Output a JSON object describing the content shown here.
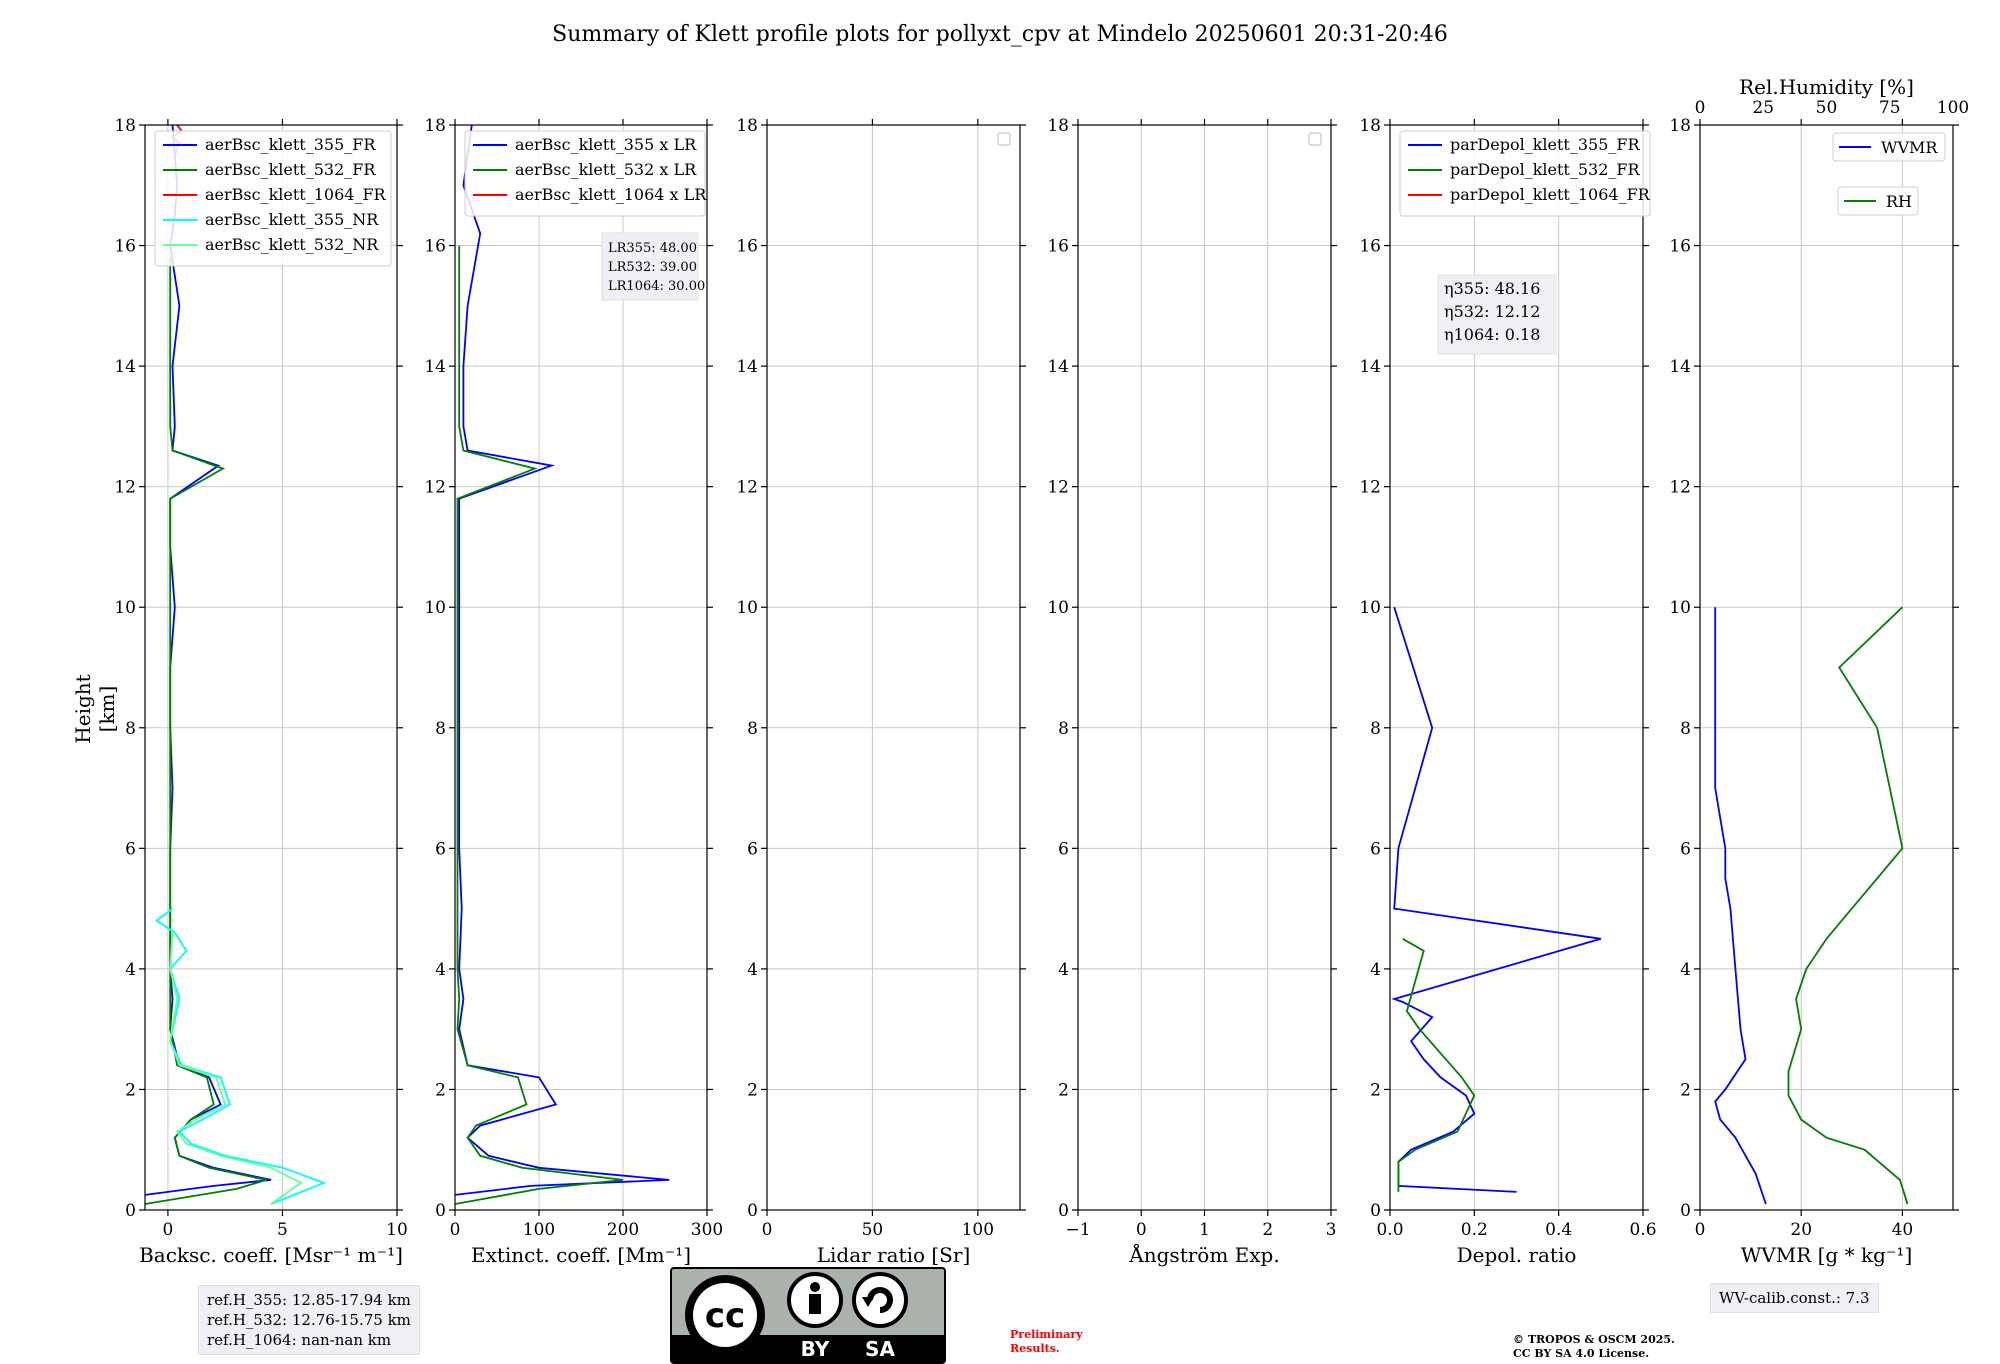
{
  "title": "Summary of Klett profile plots for pollyxt_cpv at Mindelo 20250601 20:31-20:46",
  "ylabel": "Height [km]",
  "chart_data": [
    {
      "type": "line",
      "name": "backscatter",
      "xlabel": "Backsc. coeff. [Msr⁻¹ m⁻¹]",
      "xlim": [
        -1,
        10
      ],
      "ylim": [
        0,
        18
      ],
      "xticks": [
        0,
        5,
        10
      ],
      "yticks": [
        0,
        2,
        4,
        6,
        8,
        10,
        12,
        14,
        16,
        18
      ],
      "legend_position": "top",
      "series": [
        {
          "name": "aerBsc_klett_355_FR",
          "color": "#0000ff",
          "x": [
            -1,
            2,
            4.5,
            2,
            0.5,
            0.3,
            1,
            2.3,
            1.8,
            0.5,
            0.1,
            0.2,
            0.1,
            0.1,
            0.1,
            0.2,
            0.1,
            0.1,
            0.3,
            0.1,
            0.1,
            2.2,
            0.2,
            0.3,
            0.2,
            0.5,
            0.1,
            0.3,
            0.4,
            0.2
          ],
          "y": [
            0.25,
            0.4,
            0.5,
            0.7,
            0.9,
            1.2,
            1.5,
            1.75,
            2.2,
            2.4,
            3.0,
            3.5,
            4.0,
            5.0,
            6.0,
            7.0,
            8.0,
            9.0,
            10.0,
            11.0,
            11.8,
            12.35,
            12.6,
            13.0,
            14.0,
            15.0,
            16.0,
            16.5,
            17.0,
            18.0
          ]
        },
        {
          "name": "aerBsc_klett_532_FR",
          "color": "#008000",
          "x": [
            -1,
            3,
            4.3,
            1.8,
            0.5,
            0.3,
            1,
            2,
            1.7,
            0.4,
            0.1,
            0.1,
            0.1,
            0.1,
            0.1,
            0.1,
            0.1,
            0.1,
            0.1,
            0.1,
            0.1,
            2.4,
            0.2,
            0.1,
            0.1,
            0.1,
            0.1
          ],
          "y": [
            0.1,
            0.35,
            0.5,
            0.7,
            0.9,
            1.2,
            1.5,
            1.75,
            2.2,
            2.4,
            3.0,
            3.5,
            4.0,
            5.0,
            6.0,
            7.0,
            8.0,
            9.0,
            10.0,
            11.0,
            11.8,
            12.3,
            12.6,
            13.0,
            14.0,
            15.0,
            15.8
          ]
        },
        {
          "name": "aerBsc_klett_1064_FR",
          "color": "#ff0000",
          "x": [
            0.3,
            0.5,
            0.2,
            0.6,
            0.4
          ],
          "y": [
            17.5,
            17.7,
            17.8,
            17.9,
            18.0
          ]
        },
        {
          "name": "aerBsc_klett_355_NR",
          "color": "#00ffff",
          "x": [
            4.5,
            6.8,
            5,
            2.5,
            1,
            0.5,
            1.5,
            2.7,
            2.3,
            0.6,
            0.1,
            0.5,
            0.1,
            0.8,
            0.3,
            -0.5,
            0.2
          ],
          "y": [
            0.1,
            0.45,
            0.7,
            0.9,
            1.1,
            1.3,
            1.5,
            1.75,
            2.2,
            2.4,
            2.8,
            3.5,
            4.0,
            4.3,
            4.6,
            4.8,
            5.0
          ]
        },
        {
          "name": "aerBsc_klett_532_NR",
          "color": "#66ff99",
          "x": [
            4.5,
            5.8,
            4.5,
            2.3,
            0.8,
            0.4,
            1.2,
            2.5,
            2.1,
            0.5,
            0.1,
            0.4,
            0.1,
            0.2
          ],
          "y": [
            0.1,
            0.45,
            0.7,
            0.9,
            1.1,
            1.3,
            1.5,
            1.75,
            2.2,
            2.4,
            2.8,
            3.5,
            4.0,
            4.6
          ]
        }
      ]
    },
    {
      "type": "line",
      "name": "extinction",
      "xlabel": "Extinct. coeff. [Mm⁻¹]",
      "xlim": [
        0,
        300
      ],
      "ylim": [
        0,
        18
      ],
      "xticks": [
        0,
        100,
        200,
        300
      ],
      "yticks": [
        0,
        2,
        4,
        6,
        8,
        10,
        12,
        14,
        16,
        18
      ],
      "series": [
        {
          "name": "aerBsc_klett_355 x LR",
          "color": "#0000ff",
          "x": [
            0,
            90,
            255,
            100,
            40,
            15,
            30,
            120,
            100,
            15,
            5,
            10,
            5,
            8,
            5,
            5,
            5,
            5,
            5,
            5,
            5,
            115,
            15,
            10,
            10,
            15,
            30,
            10,
            20
          ],
          "y": [
            0.25,
            0.4,
            0.5,
            0.7,
            0.9,
            1.2,
            1.4,
            1.75,
            2.2,
            2.4,
            3.0,
            3.5,
            4.0,
            5.0,
            6.0,
            7.0,
            8.0,
            9.0,
            10.0,
            11.0,
            11.8,
            12.35,
            12.6,
            13.0,
            14.0,
            15.0,
            16.2,
            17.0,
            18.0
          ]
        },
        {
          "name": "aerBsc_klett_532 x LR",
          "color": "#008000",
          "x": [
            0,
            100,
            200,
            80,
            30,
            15,
            25,
            85,
            75,
            15,
            3,
            5,
            3,
            3,
            3,
            3,
            3,
            3,
            3,
            3,
            3,
            95,
            10,
            5,
            5,
            5,
            5
          ],
          "y": [
            0.1,
            0.35,
            0.5,
            0.7,
            0.9,
            1.2,
            1.4,
            1.75,
            2.2,
            2.4,
            3.0,
            3.5,
            4.0,
            5.0,
            6.0,
            7.0,
            8.0,
            9.0,
            10.0,
            11.0,
            11.8,
            12.3,
            12.6,
            13.0,
            14.0,
            15.0,
            16.0
          ]
        },
        {
          "name": "aerBsc_klett_1064 x LR",
          "color": "#ff0000",
          "x": [],
          "y": []
        }
      ],
      "annotation": [
        "LR355: 48.00",
        "LR532: 39.00",
        "LR1064: 30.00"
      ]
    },
    {
      "type": "line",
      "name": "lidar-ratio",
      "xlabel": "Lidar ratio [Sr]",
      "xlim": [
        0,
        120
      ],
      "ylim": [
        0,
        18
      ],
      "xticks": [
        0,
        50,
        100
      ],
      "yticks": [
        0,
        2,
        4,
        6,
        8,
        10,
        12,
        14,
        16,
        18
      ],
      "series": []
    },
    {
      "type": "line",
      "name": "angstrom",
      "xlabel": "Ångström Exp.",
      "xlim": [
        -1,
        3
      ],
      "ylim": [
        0,
        18
      ],
      "xticks": [
        -1,
        0,
        1,
        2,
        3
      ],
      "yticks": [
        0,
        2,
        4,
        6,
        8,
        10,
        12,
        14,
        16,
        18
      ],
      "series": []
    },
    {
      "type": "line",
      "name": "depol",
      "xlabel": "Depol. ratio",
      "xlim": [
        0,
        0.6
      ],
      "ylim": [
        0,
        18
      ],
      "xticks": [
        0.0,
        0.2,
        0.4,
        0.6
      ],
      "yticks": [
        0,
        2,
        4,
        6,
        8,
        10,
        12,
        14,
        16,
        18
      ],
      "series": [
        {
          "name": "parDepol_klett_355_FR",
          "color": "#0000ff",
          "x": [
            0.3,
            0.02,
            0.02,
            0.05,
            0.15,
            0.2,
            0.18,
            0.12,
            0.08,
            0.05,
            0.1,
            0.03,
            0.01,
            0.5,
            0.01,
            0.02,
            0.1,
            0.01
          ],
          "y": [
            0.3,
            0.4,
            0.8,
            1.0,
            1.3,
            1.6,
            1.9,
            2.2,
            2.5,
            2.8,
            3.2,
            3.45,
            3.5,
            4.5,
            5.0,
            6.0,
            8.0,
            10.0
          ]
        },
        {
          "name": "parDepol_klett_532_FR",
          "color": "#008000",
          "x": [
            0.02,
            0.02,
            0.06,
            0.16,
            0.2,
            0.17,
            0.12,
            0.07,
            0.04,
            0.06,
            0.08,
            0.03
          ],
          "y": [
            0.3,
            0.8,
            1.0,
            1.3,
            1.9,
            2.2,
            2.6,
            3.0,
            3.3,
            3.8,
            4.3,
            4.5
          ]
        },
        {
          "name": "parDepol_klett_1064_FR",
          "color": "#ff0000",
          "x": [],
          "y": []
        }
      ],
      "annotation": [
        "η355: 48.16",
        "η532: 12.12",
        "η1064: 0.18"
      ]
    },
    {
      "type": "line",
      "name": "wvmr",
      "xlabel": "WVMR [g * kg⁻¹]",
      "xlim": [
        0,
        50
      ],
      "ylim": [
        0,
        18
      ],
      "xticks": [
        0,
        20,
        40
      ],
      "x2label": "Rel.Humidity [%]",
      "x2lim": [
        0,
        100
      ],
      "x2ticks": [
        0,
        25,
        50,
        75,
        100
      ],
      "yticks": [
        0,
        2,
        4,
        6,
        8,
        10,
        12,
        14,
        16,
        18
      ],
      "series": [
        {
          "name": "WVMR",
          "color": "#0000ff",
          "x": [
            13,
            11,
            7,
            4,
            3,
            5,
            9,
            8,
            7,
            6,
            5,
            5,
            3,
            3,
            3
          ],
          "y": [
            0.1,
            0.6,
            1.2,
            1.5,
            1.8,
            2.0,
            2.5,
            3.0,
            4.0,
            5.0,
            5.5,
            6.0,
            7.0,
            8.0,
            10.0
          ]
        },
        {
          "name": "RH",
          "color": "#008000",
          "x": [
            82,
            79,
            65,
            50,
            40,
            35,
            35,
            40,
            38,
            42,
            50,
            60,
            70,
            80,
            75,
            70,
            55,
            80
          ],
          "y": [
            0.1,
            0.5,
            1.0,
            1.2,
            1.5,
            1.9,
            2.3,
            3.0,
            3.5,
            4.0,
            4.5,
            5.0,
            5.5,
            6.0,
            7.0,
            8.0,
            9.0,
            10.0
          ]
        }
      ]
    }
  ],
  "notes": {
    "ref_h_lines": [
      "ref.H_355: 12.85-17.94 km",
      "ref.H_532: 12.76-15.75 km",
      "ref.H_1064: nan-nan km"
    ],
    "license_by": "BY",
    "license_sa": "SA",
    "preliminary_1": "Preliminary",
    "preliminary_2": "Results.",
    "wv_calib": "WV-calib.const.: 7.3",
    "copyright_1": "© TROPOS & OSCM 2025.",
    "copyright_2": "CC BY SA 4.0 License."
  },
  "colors": {
    "blue": "#0000ff",
    "green": "#008000",
    "red": "#ff0000",
    "cyan": "#00ffff",
    "lightgreen": "#66ff99",
    "grid": "#c8c8c8",
    "preliminary": "#ff0000"
  }
}
